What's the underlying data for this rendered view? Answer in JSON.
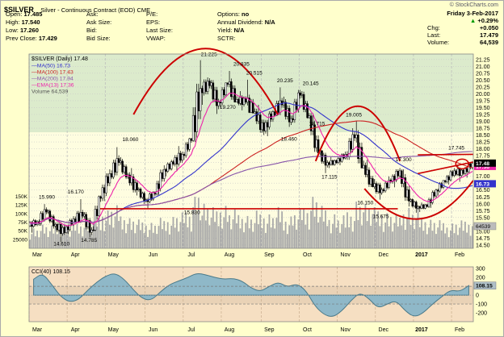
{
  "header": {
    "symbol": "$SILVER",
    "title": "Silver - Continuous Contract (EOD) CME",
    "copyright": "© StockCharts.com",
    "date": "Friday 3-Feb-2017",
    "up_arrow": "▲",
    "change_pct": "+0.29%",
    "rows": [
      {
        "label": "Chg:",
        "value": "+0.050"
      },
      {
        "label": "Last:",
        "value": "17.479"
      },
      {
        "label": "Volume:",
        "value": "64,539"
      }
    ]
  },
  "quote_panel": {
    "columns": [
      [
        {
          "label": "Open:",
          "value": "17.485"
        },
        {
          "label": "High:",
          "value": "17.540"
        },
        {
          "label": "Low:",
          "value": "17.260"
        },
        {
          "label": "Prev Close:",
          "value": "17.429"
        }
      ],
      [
        {
          "label": "Ask:",
          "value": ""
        },
        {
          "label": "Ask Size:",
          "value": ""
        },
        {
          "label": "Bid:",
          "value": ""
        },
        {
          "label": "Bid Size:",
          "value": ""
        }
      ],
      [
        {
          "label": "P/E:",
          "value": ""
        },
        {
          "label": "EPS:",
          "value": ""
        },
        {
          "label": "Last Size:",
          "value": ""
        },
        {
          "label": "VWAP:",
          "value": ""
        }
      ],
      [
        {
          "label": "Options:",
          "value": "no"
        },
        {
          "label": "Annual Dividend:",
          "value": "N/A"
        },
        {
          "label": "Yield:",
          "value": "N/A"
        },
        {
          "label": "SCTR:",
          "value": ""
        }
      ]
    ]
  },
  "colors": {
    "page_bg": "#FFFFCC",
    "band_upper": "#DCEBCC",
    "band_lower": "#FEFDE0",
    "volume": "#A9A9A9",
    "annotation": "#CC0000",
    "cci_bg": "#F6DFC2",
    "cci_fill": "#8FB8C8",
    "cci_stroke": "#4A7A8A",
    "cci_marker": "#AEBFC6"
  },
  "chart_data": {
    "type": "candlestick",
    "name": "$SILVER (Daily)",
    "last": "17.48",
    "ylim": [
      14.38,
      21.45
    ],
    "tick_min": 14.5,
    "tick_max": 21.25,
    "tick_step": 0.25,
    "band_split": 18.6,
    "x_axis": [
      "Mar",
      "Apr",
      "May",
      "Jun",
      "Jul",
      "Aug",
      "Sep",
      "Oct",
      "Nov",
      "Dec",
      "2017",
      "Feb"
    ],
    "month_day_index": [
      0,
      21,
      42,
      64,
      85,
      106,
      128,
      149,
      170,
      191,
      212,
      233
    ],
    "weekly_ohlc": [
      [
        15.2,
        15.45,
        14.95,
        15.35
      ],
      [
        15.35,
        15.99,
        15.2,
        15.7
      ],
      [
        15.7,
        15.8,
        15.1,
        15.25
      ],
      [
        15.25,
        15.4,
        14.61,
        14.95
      ],
      [
        14.95,
        15.55,
        14.9,
        15.45
      ],
      [
        15.45,
        16.17,
        15.3,
        15.55
      ],
      [
        15.55,
        15.7,
        14.785,
        15.05
      ],
      [
        15.05,
        16.3,
        15.0,
        16.2
      ],
      [
        16.2,
        17.25,
        16.1,
        17.1
      ],
      [
        17.1,
        18.06,
        16.9,
        17.5
      ],
      [
        17.5,
        17.7,
        16.9,
        17.05
      ],
      [
        17.05,
        17.3,
        16.3,
        16.5
      ],
      [
        16.5,
        16.6,
        16.0,
        16.15
      ],
      [
        16.15,
        16.45,
        15.83,
        16.35
      ],
      [
        16.35,
        17.4,
        16.3,
        17.25
      ],
      [
        17.25,
        17.6,
        17.0,
        17.45
      ],
      [
        17.45,
        18.1,
        17.2,
        17.8
      ],
      [
        17.8,
        18.4,
        17.6,
        18.3
      ],
      [
        18.3,
        21.225,
        18.25,
        20.2
      ],
      [
        20.2,
        20.6,
        19.6,
        20.3
      ],
      [
        20.3,
        20.5,
        19.27,
        19.7
      ],
      [
        19.7,
        20.4,
        19.5,
        20.35
      ],
      [
        20.35,
        20.835,
        19.7,
        19.8
      ],
      [
        19.8,
        20.1,
        19.4,
        19.7
      ],
      [
        19.7,
        20.515,
        19.3,
        19.35
      ],
      [
        19.35,
        19.6,
        18.5,
        18.65
      ],
      [
        18.65,
        19.4,
        18.46,
        19.35
      ],
      [
        19.35,
        20.235,
        19.2,
        19.6
      ],
      [
        19.6,
        19.9,
        18.8,
        19.1
      ],
      [
        19.1,
        20.145,
        18.95,
        19.95
      ],
      [
        19.95,
        20.1,
        19.1,
        19.2
      ],
      [
        19.2,
        19.3,
        17.75,
        17.85
      ],
      [
        17.85,
        17.95,
        17.115,
        17.5
      ],
      [
        17.5,
        17.7,
        17.3,
        17.5
      ],
      [
        17.5,
        17.9,
        17.4,
        17.8
      ],
      [
        17.8,
        18.75,
        17.6,
        18.4
      ],
      [
        18.4,
        19.005,
        17.3,
        17.4
      ],
      [
        17.4,
        17.6,
        16.6,
        16.62
      ],
      [
        16.62,
        16.9,
        16.15,
        16.52
      ],
      [
        16.52,
        17.0,
        16.4,
        16.8
      ],
      [
        16.8,
        17.3,
        16.6,
        17.2
      ],
      [
        17.2,
        17.25,
        15.9,
        16.1
      ],
      [
        16.1,
        16.2,
        15.675,
        15.9
      ],
      [
        15.9,
        16.05,
        15.7,
        15.9
      ],
      [
        15.9,
        16.55,
        15.85,
        16.5
      ],
      [
        16.5,
        16.85,
        16.3,
        16.8
      ],
      [
        16.8,
        17.3,
        16.7,
        17.2
      ],
      [
        17.2,
        17.4,
        16.8,
        17.1
      ],
      [
        17.1,
        17.54,
        16.95,
        17.479
      ]
    ],
    "weekly_volume_k": [
      46,
      52,
      48,
      55,
      50,
      58,
      63,
      72,
      85,
      92,
      76,
      68,
      62,
      58,
      66,
      72,
      78,
      88,
      132,
      98,
      86,
      94,
      82,
      78,
      72,
      80,
      76,
      88,
      72,
      84,
      96,
      118,
      92,
      78,
      72,
      88,
      108,
      96,
      86,
      78,
      72,
      90,
      84,
      70,
      64,
      60,
      56,
      60,
      64
    ],
    "last_volume": 64539,
    "volume_axis": {
      "max": 150000,
      "labels": [
        [
          "150K",
          150000
        ],
        [
          "125K",
          125000
        ],
        [
          "100K",
          100000
        ],
        [
          "75K",
          75000
        ],
        [
          "50K",
          50000
        ],
        [
          "25000",
          25000
        ]
      ]
    },
    "overlays": [
      {
        "name": "MA(50)",
        "value": "16.73",
        "color": "#3333CC",
        "kind": "sma",
        "window": 50
      },
      {
        "name": "MA(100)",
        "value": "17.43",
        "color": "#CC2222",
        "kind": "sma",
        "window": 100
      },
      {
        "name": "MA(200)",
        "value": "17.94",
        "color": "#8855AA",
        "kind": "sma",
        "window": 200
      },
      {
        "name": "EMA(13)",
        "value": "17.36",
        "color": "#EE22AA",
        "kind": "ema",
        "window": 13
      }
    ],
    "volume_legend": {
      "name": "Volume",
      "value": "64,539"
    },
    "axis_markers": [
      {
        "price": 17.43,
        "label": "17.43",
        "bg": "#CC2222",
        "fg": "#FFFFFF"
      },
      {
        "price": 17.36,
        "label": "17.36",
        "bg": "#EE22AA",
        "fg": "#FFFFFF"
      },
      {
        "price": 16.73,
        "label": "16.73",
        "bg": "#3333CC",
        "fg": "#FFFFFF"
      },
      {
        "price": 17.48,
        "label": "17.48",
        "bg": "#000000",
        "fg": "#FFFFFF"
      }
    ],
    "annotations": [
      {
        "x": 0.04,
        "p": 16.18,
        "text": "15.990"
      },
      {
        "x": 0.073,
        "p": 14.48,
        "text": "14.610"
      },
      {
        "x": 0.105,
        "p": 16.38,
        "text": "16.170"
      },
      {
        "x": 0.135,
        "p": 14.62,
        "text": "14.785"
      },
      {
        "x": 0.228,
        "p": 18.28,
        "text": "18.060"
      },
      {
        "x": 0.367,
        "p": 15.62,
        "text": "15.830"
      },
      {
        "x": 0.405,
        "p": 21.38,
        "text": "21.225"
      },
      {
        "x": 0.447,
        "p": 19.45,
        "text": "19.270"
      },
      {
        "x": 0.478,
        "p": 21.02,
        "text": "20.835"
      },
      {
        "x": 0.507,
        "p": 20.7,
        "text": "20.515"
      },
      {
        "x": 0.576,
        "p": 20.42,
        "text": "20.235"
      },
      {
        "x": 0.634,
        "p": 20.32,
        "text": "20.145"
      },
      {
        "x": 0.585,
        "p": 18.3,
        "text": "18.460"
      },
      {
        "x": 0.648,
        "p": 18.86,
        "text": "18.715"
      },
      {
        "x": 0.676,
        "p": 16.92,
        "text": "17.115"
      },
      {
        "x": 0.731,
        "p": 19.17,
        "text": "19.005"
      },
      {
        "x": 0.757,
        "p": 15.98,
        "text": "16.150"
      },
      {
        "x": 0.792,
        "p": 15.48,
        "text": "15.675"
      },
      {
        "x": 0.843,
        "p": 17.55,
        "text": "17.300"
      },
      {
        "x": 0.962,
        "p": 17.98,
        "text": "17.745"
      }
    ],
    "drawings": [
      {
        "type": "dome",
        "x1": 0.235,
        "x2": 0.56,
        "base": 19.25,
        "peak": 21.65
      },
      {
        "type": "dome",
        "x1": 0.645,
        "x2": 0.835,
        "base": 17.55,
        "peak": 19.55
      },
      {
        "type": "cup",
        "x1": 0.755,
        "x2": 1.0,
        "ends": [
          16.55,
          16.85
        ],
        "bottom": 15.45
      },
      {
        "type": "line",
        "x1": 0.16,
        "x2": 0.83,
        "p1": 15.82,
        "p2": 15.82
      },
      {
        "type": "line",
        "x1": 0.875,
        "x2": 1.0,
        "p1": 17.78,
        "p2": 17.8
      },
      {
        "type": "line",
        "x1": 0.875,
        "x2": 1.0,
        "p1": 17.1,
        "p2": 17.52
      },
      {
        "type": "ellipse",
        "x": 0.975,
        "p": 17.45,
        "rx": 8,
        "ry": 6
      }
    ]
  },
  "cci": {
    "type": "area",
    "name": "CCI(40)",
    "last": "108.15",
    "ylim": [
      320,
      -300
    ],
    "ticks": [
      300,
      200,
      100,
      0,
      -100,
      -200
    ],
    "band": [
      100,
      -100
    ],
    "values": [
      180,
      250,
      120,
      -20,
      -80,
      -50,
      60,
      150,
      220,
      250,
      180,
      60,
      -40,
      -60,
      40,
      120,
      160,
      200,
      250,
      230,
      200,
      180,
      190,
      160,
      80,
      40,
      100,
      150,
      90,
      130,
      60,
      -120,
      -220,
      -250,
      -180,
      -60,
      30,
      -40,
      -150,
      -100,
      -60,
      -180,
      -250,
      -200,
      -100,
      -20,
      60,
      40,
      108.15
    ]
  }
}
